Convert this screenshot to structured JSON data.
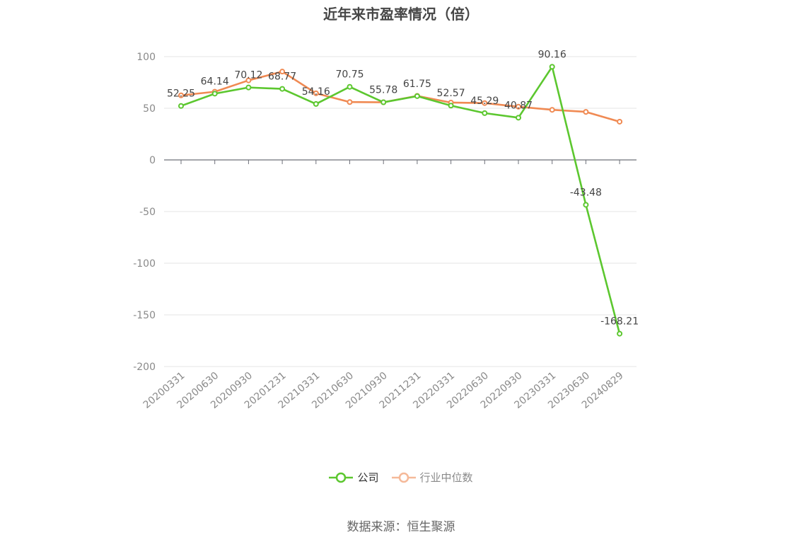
{
  "source_text": "数据来源：恒生聚源",
  "chart_data": {
    "type": "line",
    "title": "近年来市盈率情况（倍）",
    "categories": [
      "20200331",
      "20200630",
      "20200930",
      "20201231",
      "20210331",
      "20210630",
      "20210930",
      "20211231",
      "20220331",
      "20220630",
      "20220930",
      "20230331",
      "20230630",
      "20240829"
    ],
    "ylim": [
      -200,
      100
    ],
    "yticks": [
      100,
      50,
      0,
      -50,
      -100,
      -150,
      -200
    ],
    "grid": true,
    "legend_position": "bottom",
    "series": [
      {
        "name": "公司",
        "color": "#5cc72f",
        "values": [
          52.25,
          64.14,
          70.12,
          68.77,
          54.16,
          70.75,
          55.78,
          61.75,
          52.57,
          45.29,
          40.87,
          90.16,
          -43.48,
          -168.21
        ],
        "labels": [
          "52.25",
          "64.14",
          "70.12",
          "68.77",
          "54.16",
          "70.75",
          "55.78",
          "61.75",
          "52.57",
          "45.29",
          "40.87",
          "90.16",
          "-43.48",
          "-168.21"
        ]
      },
      {
        "name": "行业中位数",
        "color": "#f08a53",
        "values": [
          62.5,
          66.0,
          77.0,
          85.5,
          64.5,
          56.0,
          55.8,
          62.0,
          55.5,
          55.0,
          51.5,
          48.5,
          46.5,
          37.0
        ]
      }
    ]
  }
}
